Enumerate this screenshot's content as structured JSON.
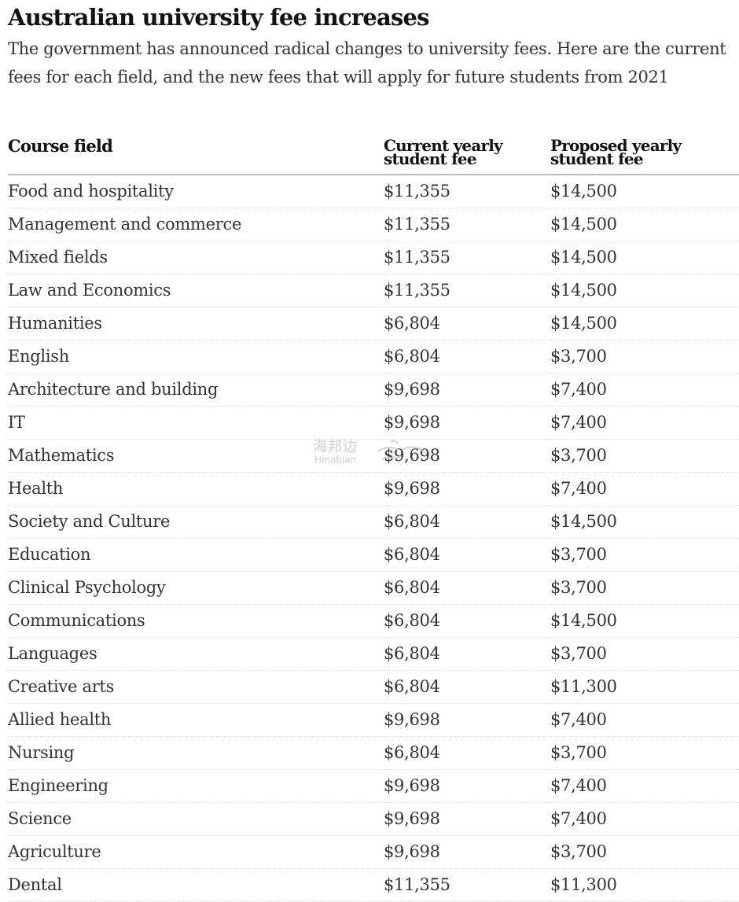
{
  "title": "Australian university fee increases",
  "subtitle": "The government has announced radical changes to university fees. Here are the current fees for each field, and the new fees that will apply for future students from 2021",
  "table": {
    "headers": {
      "course": "Course field",
      "current_line1": "Current yearly",
      "current_line2": "student fee",
      "proposed_line1": "Proposed yearly",
      "proposed_line2": "student fee"
    },
    "rows": [
      {
        "course": "Food and hospitality",
        "current": "$11,355",
        "proposed": "$14,500"
      },
      {
        "course": "Management and commerce",
        "current": "$11,355",
        "proposed": "$14,500"
      },
      {
        "course": "Mixed fields",
        "current": "$11,355",
        "proposed": "$14,500"
      },
      {
        "course": "Law and Economics",
        "current": "$11,355",
        "proposed": "$14,500"
      },
      {
        "course": "Humanities",
        "current": "$6,804",
        "proposed": "$14,500"
      },
      {
        "course": "English",
        "current": "$6,804",
        "proposed": "$3,700"
      },
      {
        "course": "Architecture and building",
        "current": "$9,698",
        "proposed": "$7,400"
      },
      {
        "course": "IT",
        "current": "$9,698",
        "proposed": "$7,400"
      },
      {
        "course": "Mathematics",
        "current": "$9,698",
        "proposed": "$3,700"
      },
      {
        "course": "Health",
        "current": "$9,698",
        "proposed": "$7,400"
      },
      {
        "course": "Society and Culture",
        "current": "$6,804",
        "proposed": "$14,500"
      },
      {
        "course": "Education",
        "current": "$6,804",
        "proposed": "$3,700"
      },
      {
        "course": "Clinical Psychology",
        "current": "$6,804",
        "proposed": "$3,700"
      },
      {
        "course": "Communications",
        "current": "$6,804",
        "proposed": "$14,500"
      },
      {
        "course": "Languages",
        "current": "$6,804",
        "proposed": "$3,700"
      },
      {
        "course": "Creative arts",
        "current": "$6,804",
        "proposed": "$11,300"
      },
      {
        "course": "Allied health",
        "current": "$9,698",
        "proposed": "$7,400"
      },
      {
        "course": "Nursing",
        "current": "$6,804",
        "proposed": "$3,700"
      },
      {
        "course": "Engineering",
        "current": "$9,698",
        "proposed": "$7,400"
      },
      {
        "course": "Science",
        "current": "$9,698",
        "proposed": "$7,400"
      },
      {
        "course": "Agriculture",
        "current": "$9,698",
        "proposed": "$3,700"
      },
      {
        "course": "Dental",
        "current": "$11,355",
        "proposed": "$11,300"
      }
    ]
  },
  "watermark": {
    "text_cn": "海邦边",
    "text_en": "Hinabian",
    "color": "#c9c9c9"
  }
}
